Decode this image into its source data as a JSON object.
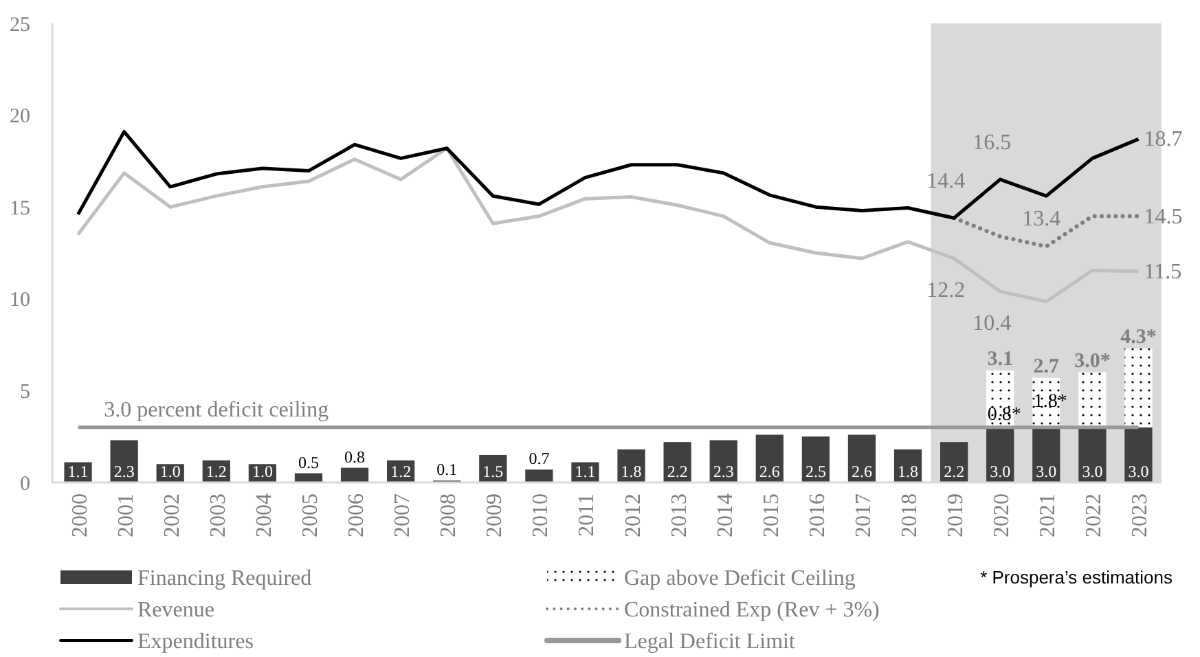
{
  "chart_data": {
    "type": "bar",
    "stacked": true,
    "categories": [
      "2000",
      "2001",
      "2002",
      "2003",
      "2004",
      "2005",
      "2006",
      "2007",
      "2008",
      "2009",
      "2010",
      "2011",
      "2012",
      "2013",
      "2014",
      "2015",
      "2016",
      "2017",
      "2018",
      "2019",
      "2020",
      "2021",
      "2022",
      "2023"
    ],
    "series": [
      {
        "name": "Financing Required",
        "color": "#404040",
        "values": [
          1.1,
          2.3,
          1.0,
          1.2,
          1.0,
          0.5,
          0.8,
          1.2,
          0.1,
          1.5,
          0.7,
          1.1,
          1.8,
          2.2,
          2.3,
          2.6,
          2.5,
          2.6,
          1.8,
          2.2,
          3.0,
          3.0,
          3.0,
          3.0
        ],
        "value_labels": [
          "1.1",
          "2.3",
          "1.0",
          "1.2",
          "1.0",
          "0.5",
          "0.8",
          "1.2",
          "0.1",
          "1.5",
          "0.7",
          "1.1",
          "1.8",
          "2.2",
          "2.3",
          "2.6",
          "2.5",
          "2.6",
          "1.8",
          "2.2",
          "3.0",
          "3.0",
          "3.0",
          "3.0"
        ]
      },
      {
        "name": "Gap above Deficit Ceiling",
        "color": "#ffffff",
        "values": [
          null,
          null,
          null,
          null,
          null,
          null,
          null,
          null,
          null,
          null,
          null,
          null,
          null,
          null,
          null,
          null,
          null,
          null,
          null,
          null,
          3.1,
          2.7,
          3.0,
          4.3
        ],
        "value_labels": [
          null,
          null,
          null,
          null,
          null,
          null,
          null,
          null,
          null,
          null,
          null,
          null,
          null,
          null,
          null,
          null,
          null,
          null,
          null,
          null,
          "3.1",
          "2.7",
          "3.0*",
          "4.3*"
        ]
      },
      {
        "name": "Revenue",
        "type": "line",
        "color": "#bfbfbf",
        "values": [
          13.5,
          16.85,
          15.0,
          15.6,
          16.1,
          16.4,
          17.6,
          16.5,
          18.2,
          14.1,
          14.5,
          15.45,
          15.55,
          15.1,
          14.5,
          13.05,
          12.5,
          12.2,
          13.1,
          12.2,
          10.4,
          9.85,
          11.55,
          11.5
        ],
        "value_labels": [
          null,
          null,
          null,
          null,
          null,
          null,
          null,
          null,
          null,
          null,
          null,
          null,
          null,
          null,
          null,
          null,
          null,
          null,
          null,
          "12.2",
          "10.4",
          null,
          null,
          "11.5"
        ]
      },
      {
        "name": "Constrained Exp (Rev + 3%)",
        "type": "line",
        "line_style": "dotted",
        "color": "#7f7f7f",
        "values": [
          null,
          null,
          null,
          null,
          null,
          null,
          null,
          null,
          null,
          null,
          null,
          null,
          null,
          null,
          null,
          null,
          null,
          null,
          null,
          14.4,
          13.4,
          12.85,
          14.5,
          14.5
        ],
        "value_labels": [
          null,
          null,
          null,
          null,
          null,
          null,
          null,
          null,
          null,
          null,
          null,
          null,
          null,
          null,
          null,
          null,
          null,
          null,
          null,
          null,
          "13.4",
          null,
          null,
          "14.5"
        ]
      },
      {
        "name": "Expenditures",
        "type": "line",
        "color": "#000000",
        "values": [
          14.6,
          19.1,
          16.1,
          16.8,
          17.1,
          16.97,
          18.4,
          17.65,
          18.2,
          15.6,
          15.15,
          16.6,
          17.3,
          17.3,
          16.85,
          15.65,
          15.0,
          14.8,
          14.95,
          14.4,
          16.5,
          15.6,
          17.65,
          18.7
        ],
        "value_labels": [
          null,
          null,
          null,
          null,
          null,
          null,
          null,
          null,
          null,
          null,
          null,
          null,
          null,
          null,
          null,
          null,
          null,
          null,
          null,
          "14.4",
          "16.5",
          null,
          null,
          "18.7"
        ]
      },
      {
        "name": "Legal Deficit Limit",
        "type": "line",
        "color": "#999999",
        "values": [
          3,
          3,
          3,
          3,
          3,
          3,
          3,
          3,
          3,
          3,
          3,
          3,
          3,
          3,
          3,
          3,
          3,
          3,
          3,
          3,
          3,
          3,
          3,
          3
        ]
      }
    ],
    "ylim": [
      0,
      25
    ],
    "yticks": [
      0,
      5,
      10,
      15,
      20,
      25
    ],
    "grid": false,
    "legend": "bottom",
    "bands": [
      {
        "axis": "x",
        "from": "2019",
        "to": "2023",
        "color": "#d9d9d9"
      }
    ],
    "annotations": [
      {
        "text": "3.0 percent deficit ceiling",
        "x": "2003",
        "y": 3
      },
      "0.8*",
      "1.8*",
      "* Prospera’s estimations"
    ]
  }
}
